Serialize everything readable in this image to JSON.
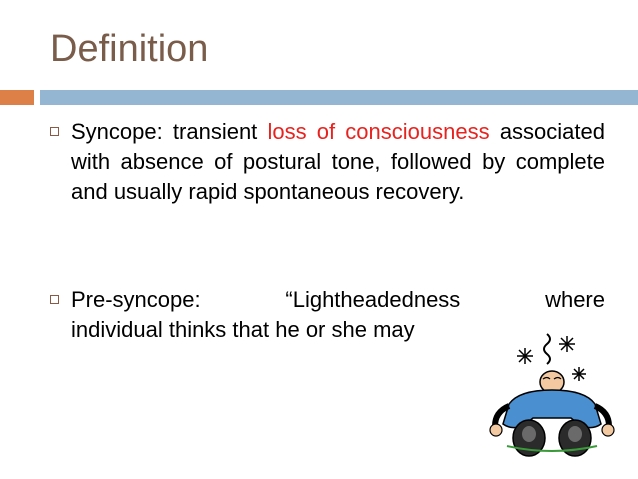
{
  "slide": {
    "title": "Definition",
    "bullets": [
      {
        "term": "Syncope: transient",
        "highlight": "loss of consciousness",
        "rest": "associated with absence of postural tone, followed by complete and usually rapid spontaneous recovery.",
        "highlight_color": "#e8231f"
      },
      {
        "line1": "Pre-syncope:   “Lightheadedness   where",
        "line2": "individual thinks that he or she may"
      }
    ]
  },
  "colors": {
    "title": "#7a5c4a",
    "accent_orange": "#dd8047",
    "accent_blue": "#94b6d2"
  },
  "icons": [
    "fainted-person-clipart"
  ]
}
